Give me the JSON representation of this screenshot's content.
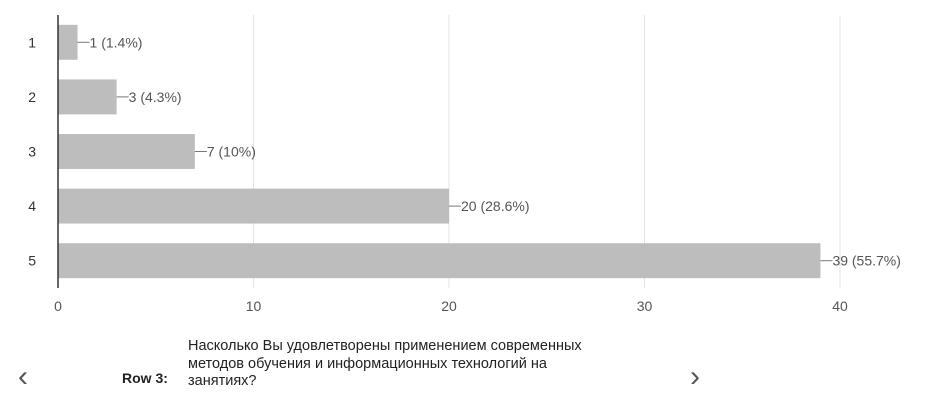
{
  "chart_data": {
    "type": "bar",
    "orientation": "horizontal",
    "categories": [
      "1",
      "2",
      "3",
      "4",
      "5"
    ],
    "values": [
      1,
      3,
      7,
      20,
      39
    ],
    "data_labels": [
      "1 (1.4%)",
      "3 (4.3%)",
      "7 (10%)",
      "20 (28.6%)",
      "39 (55.7%)"
    ],
    "xlim": [
      0,
      40
    ],
    "xticks": [
      "0",
      "10",
      "20",
      "30",
      "40"
    ],
    "grid": true,
    "bar_color": "#bdbdbd",
    "title": "",
    "xlabel": "",
    "ylabel": ""
  },
  "navigation": {
    "prev_icon": "‹",
    "next_icon": "›",
    "row_label": "Row 3:",
    "question": "Насколько Вы удовлетворены применением современных методов обучения и информационных технологий на занятиях?"
  }
}
